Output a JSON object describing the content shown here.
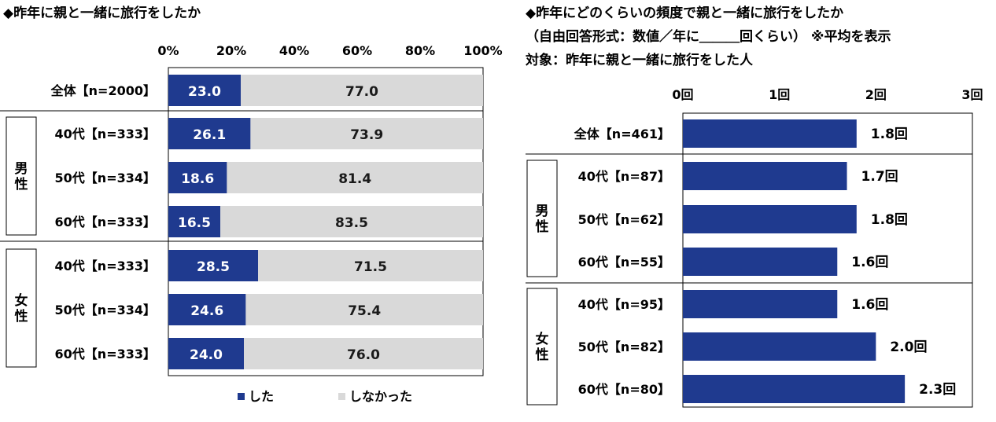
{
  "left_chart": {
    "title": "◆昨年に親と一緒に旅行をしたか",
    "axis_ticks": [
      "0%",
      "20%",
      "40%",
      "60%",
      "80%",
      "100%"
    ],
    "group_labels": [
      "男性",
      "女性"
    ],
    "legend": [
      {
        "label": "した",
        "color": "#1f3a8f"
      },
      {
        "label": "しなかった",
        "color": "#d9d9d9"
      }
    ]
  },
  "right_chart": {
    "title_lines": [
      "◆昨年にどのくらいの頻度で親と一緒に旅行をしたか",
      "（自由回答形式：数値／年に＿＿＿回くらい） ※平均を表示",
      "対象：昨年に親と一緒に旅行をした人"
    ],
    "axis_ticks": [
      "0回",
      "1回",
      "2回",
      "3回"
    ],
    "group_labels": [
      "男性",
      "女性"
    ]
  },
  "chart_data": [
    {
      "type": "bar",
      "orientation": "horizontal",
      "stacked": true,
      "title": "◆昨年に親と一緒に旅行をしたか",
      "categories": [
        "全体【n=2000】",
        "40代【n=333】",
        "50代【n=334】",
        "60代【n=333】",
        "40代【n=333】",
        "50代【n=334】",
        "60代【n=333】"
      ],
      "groups": [
        {
          "label": "男性",
          "category_indices": [
            1,
            2,
            3
          ]
        },
        {
          "label": "女性",
          "category_indices": [
            4,
            5,
            6
          ]
        }
      ],
      "series": [
        {
          "name": "した",
          "color": "#1f3a8f",
          "values": [
            23.0,
            26.1,
            18.6,
            16.5,
            28.5,
            24.6,
            24.0
          ]
        },
        {
          "name": "しなかった",
          "color": "#d9d9d9",
          "values": [
            77.0,
            73.9,
            81.4,
            83.5,
            71.5,
            75.4,
            76.0
          ]
        }
      ],
      "xlim": [
        0,
        100
      ],
      "legend_position": "bottom"
    },
    {
      "type": "bar",
      "orientation": "horizontal",
      "title": "◆昨年にどのくらいの頻度で親と一緒に旅行をしたか",
      "categories": [
        "全体【n=461】",
        "40代【n=87】",
        "50代【n=62】",
        "60代【n=55】",
        "40代【n=95】",
        "50代【n=82】",
        "60代【n=80】"
      ],
      "groups": [
        {
          "label": "男性",
          "category_indices": [
            1,
            2,
            3
          ]
        },
        {
          "label": "女性",
          "category_indices": [
            4,
            5,
            6
          ]
        }
      ],
      "values": [
        1.8,
        1.7,
        1.8,
        1.6,
        1.6,
        2.0,
        2.3
      ],
      "value_labels": [
        "1.8回",
        "1.7回",
        "1.8回",
        "1.6回",
        "1.6回",
        "2.0回",
        "2.3回"
      ],
      "color": "#1f3a8f",
      "xlim": [
        0,
        3
      ]
    }
  ]
}
